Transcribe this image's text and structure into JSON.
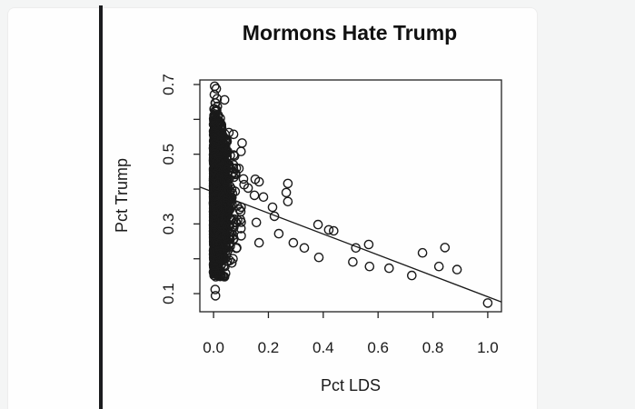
{
  "colors": {
    "page_bg": "#f4f5f5",
    "card_bg": "#fefefe",
    "divider": "#1b1c1e",
    "plot_foreground": "#1a1a1a"
  },
  "chart_data": {
    "type": "scatter",
    "title": "Mormons Hate Trump",
    "xlabel": "Pct LDS",
    "ylabel": "Pct Trump",
    "xlim": [
      -0.05,
      1.05
    ],
    "ylim": [
      0.048,
      0.713
    ],
    "grid": false,
    "legend": "none",
    "x_tick_values": [
      0.0,
      0.2,
      0.4,
      0.6,
      0.8,
      1.0
    ],
    "x_tick_labels": [
      "0.0",
      "0.2",
      "0.4",
      "0.6",
      "0.8",
      "1.0"
    ],
    "y_tick_values": [
      0.1,
      0.2,
      0.3,
      0.4,
      0.5,
      0.6,
      0.7
    ],
    "y_tick_labels": [
      "0.1",
      "",
      "0.3",
      "",
      "0.5",
      "",
      "0.7"
    ],
    "regression_line": {
      "intercept": 0.391,
      "slope": -0.3
    },
    "marker": {
      "shape": "open-circle",
      "radius": 4.6,
      "stroke_width": 1.4
    },
    "points_scatter": [
      [
        0.004,
        0.695
      ],
      [
        0.01,
        0.688
      ],
      [
        0.003,
        0.671
      ],
      [
        0.013,
        0.659
      ],
      [
        0.006,
        0.647
      ],
      [
        0.04,
        0.656
      ],
      [
        0.014,
        0.637
      ],
      [
        0.007,
        0.624
      ],
      [
        0.017,
        0.611
      ],
      [
        0.056,
        0.562
      ],
      [
        0.073,
        0.557
      ],
      [
        0.104,
        0.532
      ],
      [
        0.1,
        0.508
      ],
      [
        0.109,
        0.429
      ],
      [
        0.126,
        0.403
      ],
      [
        0.152,
        0.428
      ],
      [
        0.166,
        0.421
      ],
      [
        0.149,
        0.382
      ],
      [
        0.182,
        0.377
      ],
      [
        0.271,
        0.416
      ],
      [
        0.265,
        0.39
      ],
      [
        0.271,
        0.364
      ],
      [
        0.215,
        0.348
      ],
      [
        0.222,
        0.322
      ],
      [
        0.156,
        0.304
      ],
      [
        0.099,
        0.335
      ],
      [
        0.083,
        0.303
      ],
      [
        0.066,
        0.277
      ],
      [
        0.166,
        0.246
      ],
      [
        0.083,
        0.23
      ],
      [
        0.238,
        0.272
      ],
      [
        0.291,
        0.246
      ],
      [
        0.331,
        0.231
      ],
      [
        0.381,
        0.298
      ],
      [
        0.42,
        0.283
      ],
      [
        0.438,
        0.28
      ],
      [
        0.384,
        0.204
      ],
      [
        0.519,
        0.231
      ],
      [
        0.566,
        0.241
      ],
      [
        0.508,
        0.191
      ],
      [
        0.569,
        0.178
      ],
      [
        0.64,
        0.173
      ],
      [
        0.723,
        0.152
      ],
      [
        0.762,
        0.217
      ],
      [
        0.844,
        0.232
      ],
      [
        0.822,
        0.178
      ],
      [
        0.888,
        0.169
      ],
      [
        1.0,
        0.073
      ],
      [
        0.006,
        0.112
      ],
      [
        0.007,
        0.094
      ]
    ],
    "dense_cluster": {
      "description": "very dense mass of open circles hugging x=0, solid black from overlap",
      "count": 2200,
      "seed": 987654321,
      "x_exponential_scale": 0.016,
      "x_max": 0.115,
      "y_center": 0.375,
      "center_slope": -0.3,
      "y_sd": 0.105,
      "envelope_half_width": 0.295,
      "envelope_taper": 1.9,
      "y_min": 0.148,
      "y_max": 0.668
    }
  }
}
